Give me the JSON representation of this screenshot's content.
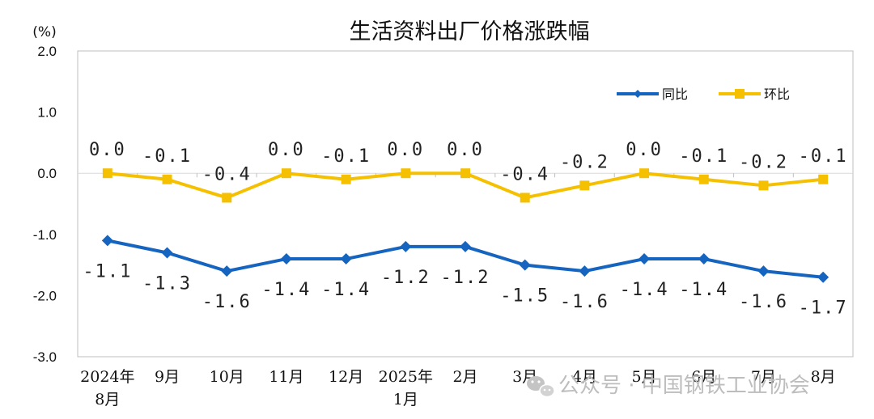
{
  "colors": {
    "yoy": "#1565C0",
    "mom": "#F5C000",
    "grid": "#d9d9d9",
    "axis": "#bfbfbf",
    "watermark": "#bdbdbd"
  },
  "watermark": {
    "icon": "wechat-icon",
    "text": "公众号 · 中国钢铁工业协会"
  },
  "chart_data": {
    "type": "line",
    "title": "生活资料出厂价格涨跌幅",
    "unit_label": "(%)",
    "ylim": [
      -3.0,
      2.0
    ],
    "yticks": [
      "2.0",
      "1.0",
      "0.0",
      "-1.0",
      "-2.0",
      "-3.0"
    ],
    "ytick_values": [
      2.0,
      1.0,
      0.0,
      -1.0,
      -2.0,
      -3.0
    ],
    "grid": "horizontal line at 0.0 only",
    "legend_position": "top-right",
    "categories": [
      [
        "2024年",
        "8月"
      ],
      [
        "9月"
      ],
      [
        "10月"
      ],
      [
        "11月"
      ],
      [
        "12月"
      ],
      [
        "2025年",
        "1月"
      ],
      [
        "2月"
      ],
      [
        "3月"
      ],
      [
        "4月"
      ],
      [
        "5月"
      ],
      [
        "6月"
      ],
      [
        "7月"
      ],
      [
        "8月"
      ]
    ],
    "series": [
      {
        "name": "同比",
        "color": "#1565C0",
        "marker": "diamond",
        "values": [
          -1.1,
          -1.3,
          -1.6,
          -1.4,
          -1.4,
          -1.2,
          -1.2,
          -1.5,
          -1.6,
          -1.4,
          -1.4,
          -1.6,
          -1.7
        ],
        "labels": [
          "-1.1",
          "-1.3",
          "-1.6",
          "-1.4",
          "-1.4",
          "-1.2",
          "-1.2",
          "-1.5",
          "-1.6",
          "-1.4",
          "-1.4",
          "-1.6",
          "-1.7"
        ]
      },
      {
        "name": "环比",
        "color": "#F5C000",
        "marker": "square",
        "values": [
          0.0,
          -0.1,
          -0.4,
          0.0,
          -0.1,
          0.0,
          0.0,
          -0.4,
          -0.2,
          0.0,
          -0.1,
          -0.2,
          -0.1
        ],
        "labels": [
          "0.0",
          "-0.1",
          "-0.4",
          "0.0",
          "-0.1",
          "0.0",
          "0.0",
          "-0.4",
          "-0.2",
          "0.0",
          "-0.1",
          "-0.2",
          "-0.1"
        ]
      }
    ]
  }
}
